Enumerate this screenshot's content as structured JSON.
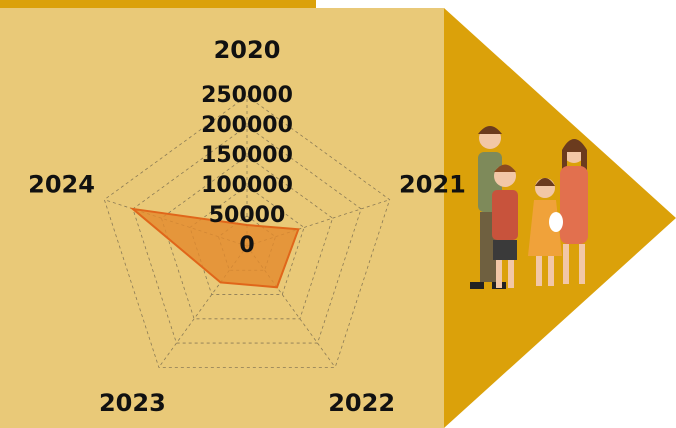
{
  "chart_data": {
    "type": "radar",
    "categories": [
      "2020",
      "2021",
      "2022",
      "2023",
      "2024"
    ],
    "values": [
      35000,
      90000,
      85000,
      75000,
      200000
    ],
    "color": "#e48a2c",
    "ylim": [
      0,
      250000
    ],
    "yticks": [
      0,
      50000,
      100000,
      150000,
      200000,
      250000
    ],
    "grid": true
  }
}
